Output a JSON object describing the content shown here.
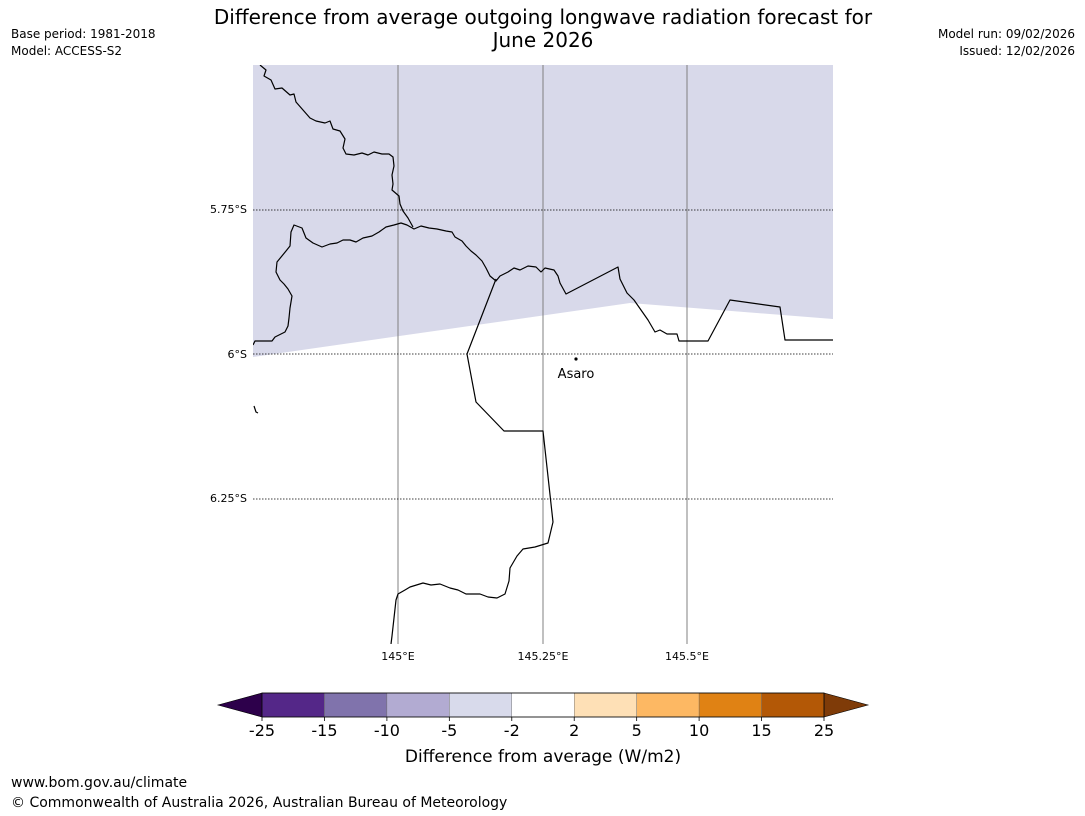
{
  "header": {
    "title_line1": "Difference from average outgoing longwave radiation forecast for",
    "title_line2": "June 2026",
    "base_period": "Base period: 1981-2018",
    "model": "Model: ACCESS-S2",
    "model_run": "Model run: 09/02/2026",
    "issued": "Issued: 12/02/2026"
  },
  "map": {
    "lat_labels": [
      "5.75°S",
      "6°S",
      "6.25°S"
    ],
    "lon_labels": [
      "145°E",
      "145.25°E",
      "145.5°E"
    ],
    "place": {
      "name": "Asaro"
    },
    "shaded_category": "-5 to -2",
    "shaded_color": "#d8d9ea"
  },
  "colorbar": {
    "title": "Difference from average (W/m2)",
    "ticks": [
      "-25",
      "-15",
      "-10",
      "-5",
      "-2",
      "2",
      "5",
      "10",
      "15",
      "25"
    ],
    "colors": [
      "#542788",
      "#8073ac",
      "#b2abd2",
      "#d8daeb",
      "#ffffff",
      "#fee0b6",
      "#fdb863",
      "#e08214",
      "#b35806"
    ],
    "under_color": "#2d004b",
    "over_color": "#7f3b08"
  },
  "footer": {
    "url": "www.bom.gov.au/climate",
    "copyright": "© Commonwealth of Australia 2026, Australian Bureau of Meteorology"
  }
}
